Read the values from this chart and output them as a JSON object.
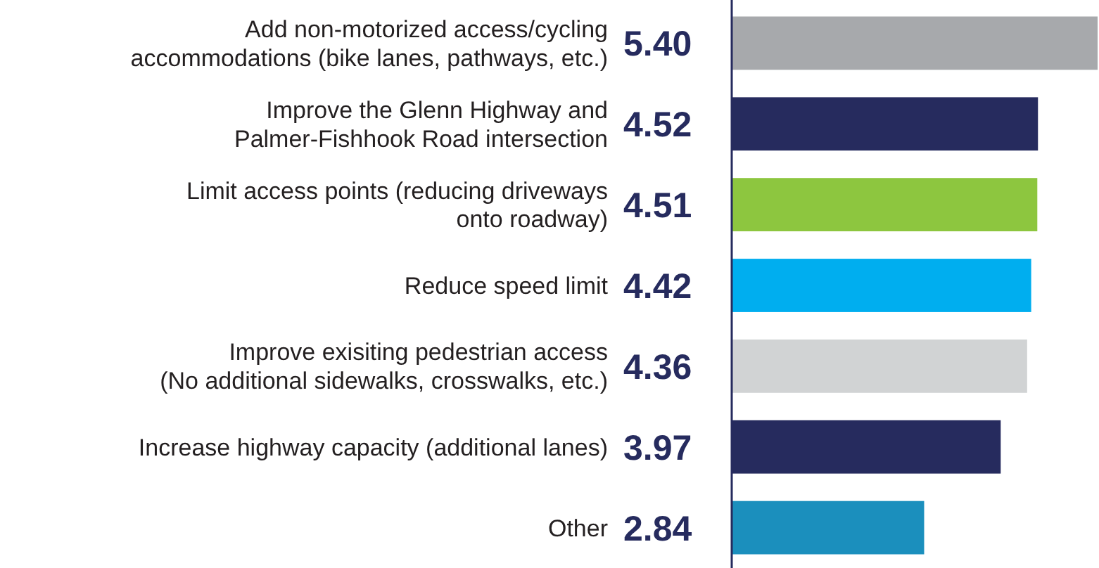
{
  "chart_data": {
    "type": "bar",
    "orientation": "horizontal",
    "value_labels": [
      "5.40",
      "4.52",
      "4.51",
      "4.42",
      "4.36",
      "3.97",
      "2.84"
    ],
    "categories": [
      "Add non-motorized access/cycling\naccommodations (bike lanes, pathways, etc.)",
      "Improve the Glenn Highway and\nPalmer-Fishhook Road intersection",
      "Limit access points (reducing driveways\nonto roadway)",
      "Reduce speed limit",
      "Improve exisiting pedestrian access\n(No additional sidewalks, crosswalks, etc.)",
      "Increase highway capacity (additional lanes)",
      "Other"
    ],
    "values": [
      5.4,
      4.52,
      4.51,
      4.42,
      4.36,
      3.97,
      2.84
    ],
    "colors": [
      "#a7a9ac",
      "#262b5e",
      "#8dc63f",
      "#00aeef",
      "#d1d3d4",
      "#262b5e",
      "#1b8fbd"
    ]
  }
}
